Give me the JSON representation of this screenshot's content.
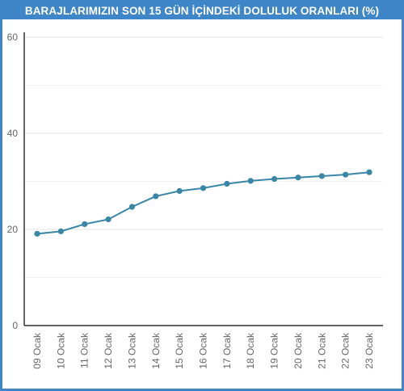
{
  "colors": {
    "frame": "#3f86c9",
    "line": "#3a86a6",
    "grid": "#e6e6e6",
    "axis": "#333333",
    "text": "#666666"
  },
  "chart_data": {
    "type": "line",
    "title": "BARAJLARIMIZIN SON 15 GÜN İÇİNDEKİ DOLULUK ORANLARI (%)",
    "xlabel": "",
    "ylabel": "",
    "categories": [
      "09 Ocak",
      "10 Ocak",
      "11 Ocak",
      "12 Ocak",
      "13 Ocak",
      "14 Ocak",
      "15 Ocak",
      "16 Ocak",
      "17 Ocak",
      "18 Ocak",
      "19 Ocak",
      "20 Ocak",
      "21 Ocak",
      "22 Ocak",
      "23 Ocak"
    ],
    "series": [
      {
        "values": [
          19.1,
          19.6,
          21.1,
          22.1,
          24.7,
          26.9,
          28.0,
          28.6,
          29.5,
          30.1,
          30.5,
          30.8,
          31.1,
          31.4,
          31.9
        ]
      }
    ],
    "ylim": [
      0,
      60
    ],
    "yticks": [
      0,
      20,
      40,
      60
    ],
    "grid": true,
    "legend": "none"
  }
}
